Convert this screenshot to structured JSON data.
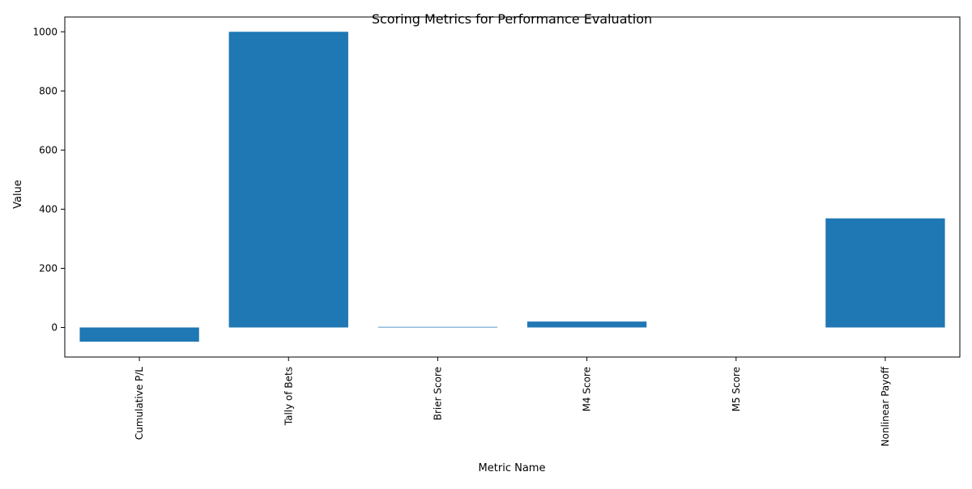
{
  "chart_data": {
    "type": "bar",
    "title": "Scoring Metrics for Performance Evaluation",
    "xlabel": "Metric Name",
    "ylabel": "Value",
    "categories": [
      "Cumulative P/L",
      "Tally of Bets",
      "Brier Score",
      "M4 Score",
      "M5 Score",
      "Nonlinear Payoff"
    ],
    "values": [
      -48,
      1000,
      2,
      20,
      0,
      369
    ],
    "ylim": [
      -100,
      1050
    ],
    "yticks": [
      0,
      200,
      400,
      600,
      800,
      1000
    ],
    "bar_color": "#1f77b4",
    "grid": false,
    "legend": "none"
  }
}
